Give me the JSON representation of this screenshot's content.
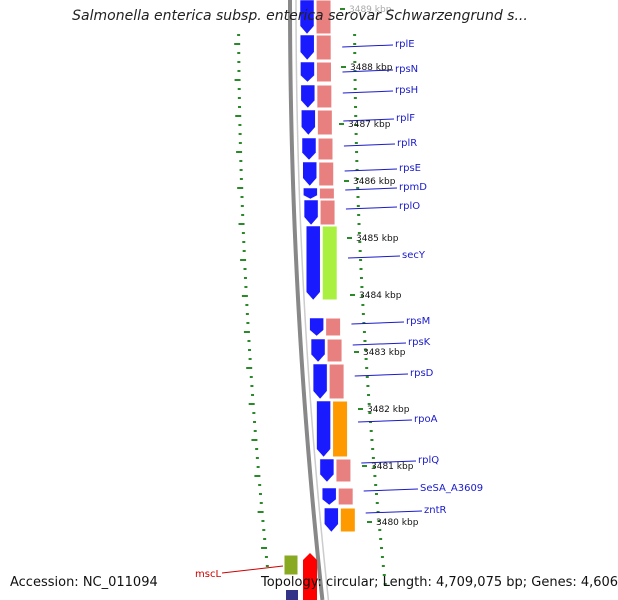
{
  "title": "Salmonella enterica subsp. enterica serovar Schwarzengrund s...",
  "footer": {
    "accession": "Accession: NC_011094",
    "summary": "Topology: circular; Length: 4,709,075 bp; Genes: 4,606"
  },
  "kbp_labels": [
    "3489 kbp",
    "3488 kbp",
    "3487 kbp",
    "3486 kbp",
    "3485 kbp",
    "3484 kbp",
    "3483 kbp",
    "3482 kbp",
    "3481 kbp",
    "3480 kbp"
  ],
  "genes": [
    {
      "name": "rplE",
      "color": "#1a1aff"
    },
    {
      "name": "rpsN",
      "color": "#1a1aff"
    },
    {
      "name": "rpsH",
      "color": "#1a1aff"
    },
    {
      "name": "rplF",
      "color": "#1a1aff"
    },
    {
      "name": "rplR",
      "color": "#1a1aff"
    },
    {
      "name": "rpsE",
      "color": "#1a1aff"
    },
    {
      "name": "rpmD",
      "color": "#1a1aff"
    },
    {
      "name": "rplO",
      "color": "#1a1aff"
    },
    {
      "name": "secY",
      "color": "#1a1aff"
    },
    {
      "name": "rpsM",
      "color": "#1a1aff"
    },
    {
      "name": "rpsK",
      "color": "#1a1aff"
    },
    {
      "name": "rpsD",
      "color": "#1a1aff"
    },
    {
      "name": "rpoA",
      "color": "#1a1aff"
    },
    {
      "name": "rplQ",
      "color": "#1a1aff"
    },
    {
      "name": "SeSA_A3609",
      "color": "#1a1aff"
    },
    {
      "name": "zntR",
      "color": "#1a1aff"
    }
  ],
  "cog_colors": {
    "translation": "#e88080",
    "secretion": "#aaf040",
    "transcription": "#ff9900",
    "transport": "#88aa22",
    "mscL_gene": "#ff0000"
  },
  "other_gene": {
    "name": "mscL",
    "color": "#cc0000"
  }
}
